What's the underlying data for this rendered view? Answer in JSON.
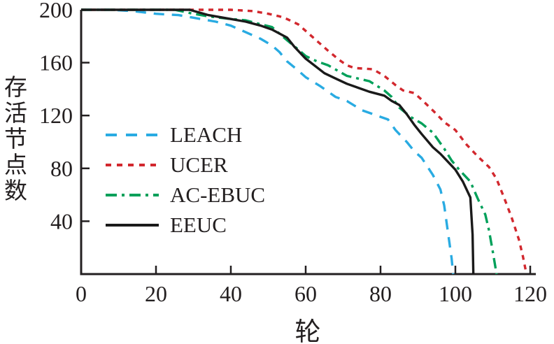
{
  "figure": {
    "background": "#ffffff",
    "axis_color": "#231F20",
    "tick_label_color": "#231F20"
  },
  "chart_data": {
    "type": "line",
    "title": "",
    "xlabel": "轮",
    "ylabel": "存活节点数",
    "xlim": [
      0,
      120
    ],
    "ylim": [
      0,
      200
    ],
    "xticks": [
      0,
      20,
      40,
      60,
      80,
      100,
      120
    ],
    "yticks": [
      40,
      80,
      120,
      160,
      200
    ],
    "grid": false,
    "legend_position": "center-left",
    "series": [
      {
        "name": "LEACH",
        "color": "#29ABE2",
        "dash": "15 11",
        "legend_dash": "16 13",
        "points": [
          [
            0,
            200
          ],
          [
            8,
            200
          ],
          [
            14,
            199
          ],
          [
            20,
            197
          ],
          [
            26,
            196
          ],
          [
            30,
            194
          ],
          [
            36,
            191
          ],
          [
            40,
            188
          ],
          [
            44,
            183
          ],
          [
            48,
            178
          ],
          [
            51,
            173
          ],
          [
            53,
            168
          ],
          [
            55,
            161
          ],
          [
            58,
            154
          ],
          [
            60,
            149
          ],
          [
            64,
            142
          ],
          [
            68,
            134
          ],
          [
            71,
            131
          ],
          [
            75,
            124
          ],
          [
            79,
            120
          ],
          [
            82,
            117
          ],
          [
            84,
            109
          ],
          [
            87,
            100
          ],
          [
            89,
            93
          ],
          [
            91,
            88
          ],
          [
            94,
            75
          ],
          [
            96,
            64
          ],
          [
            97,
            52
          ],
          [
            98,
            32
          ],
          [
            99,
            12
          ],
          [
            99.4,
            0
          ]
        ]
      },
      {
        "name": "UCER",
        "color": "#D2282E",
        "dash": "7 7",
        "legend_dash": "8 8",
        "points": [
          [
            0,
            200
          ],
          [
            20,
            200
          ],
          [
            40,
            200
          ],
          [
            46,
            199
          ],
          [
            50,
            197
          ],
          [
            53,
            195
          ],
          [
            55,
            193
          ],
          [
            58,
            189
          ],
          [
            60,
            184
          ],
          [
            62,
            179
          ],
          [
            66,
            169
          ],
          [
            69,
            162
          ],
          [
            71,
            158
          ],
          [
            73,
            156
          ],
          [
            78,
            155
          ],
          [
            81,
            150
          ],
          [
            84,
            143
          ],
          [
            86,
            139
          ],
          [
            89,
            137
          ],
          [
            91,
            132
          ],
          [
            95,
            121
          ],
          [
            97,
            115
          ],
          [
            100,
            109
          ],
          [
            103,
            98
          ],
          [
            106,
            89
          ],
          [
            109,
            81
          ],
          [
            111,
            72
          ],
          [
            113,
            58
          ],
          [
            115,
            43
          ],
          [
            117,
            26
          ],
          [
            118,
            14
          ],
          [
            119,
            0
          ]
        ]
      },
      {
        "name": "AC-EBUC",
        "color": "#00A05A",
        "dash": "15 7 4 7",
        "legend_dash": "16 7 4 7",
        "points": [
          [
            0,
            200
          ],
          [
            15,
            200
          ],
          [
            25,
            200
          ],
          [
            30,
            197
          ],
          [
            34,
            195
          ],
          [
            40,
            193
          ],
          [
            44,
            192
          ],
          [
            48,
            189
          ],
          [
            51,
            187
          ],
          [
            55,
            177
          ],
          [
            58,
            170
          ],
          [
            60,
            165
          ],
          [
            63,
            161
          ],
          [
            66,
            158
          ],
          [
            71,
            150
          ],
          [
            74,
            148
          ],
          [
            77,
            146
          ],
          [
            81,
            139
          ],
          [
            83,
            134
          ],
          [
            85,
            126
          ],
          [
            88,
            119
          ],
          [
            91,
            114
          ],
          [
            94,
            107
          ],
          [
            97,
            95
          ],
          [
            99,
            86
          ],
          [
            101,
            79
          ],
          [
            104,
            70
          ],
          [
            106,
            57
          ],
          [
            108,
            45
          ],
          [
            109,
            33
          ],
          [
            110,
            17
          ],
          [
            111,
            0
          ]
        ]
      },
      {
        "name": "EEUC",
        "color": "#1A1A1A",
        "dash": "",
        "legend_dash": "",
        "points": [
          [
            0,
            200
          ],
          [
            10,
            200
          ],
          [
            20,
            200
          ],
          [
            29,
            200
          ],
          [
            34,
            196
          ],
          [
            40,
            193
          ],
          [
            44,
            191
          ],
          [
            48,
            188
          ],
          [
            51,
            185
          ],
          [
            55,
            179
          ],
          [
            57,
            172
          ],
          [
            60,
            163
          ],
          [
            65,
            152
          ],
          [
            68,
            148
          ],
          [
            71,
            144
          ],
          [
            74,
            141
          ],
          [
            77,
            138
          ],
          [
            81,
            135
          ],
          [
            83,
            131
          ],
          [
            85,
            128
          ],
          [
            87,
            121
          ],
          [
            89,
            113
          ],
          [
            91,
            106
          ],
          [
            94,
            96
          ],
          [
            96,
            91
          ],
          [
            98,
            85
          ],
          [
            100,
            79
          ],
          [
            102,
            70
          ],
          [
            104,
            58
          ],
          [
            104.6,
            30
          ],
          [
            104.8,
            0
          ]
        ]
      }
    ]
  }
}
